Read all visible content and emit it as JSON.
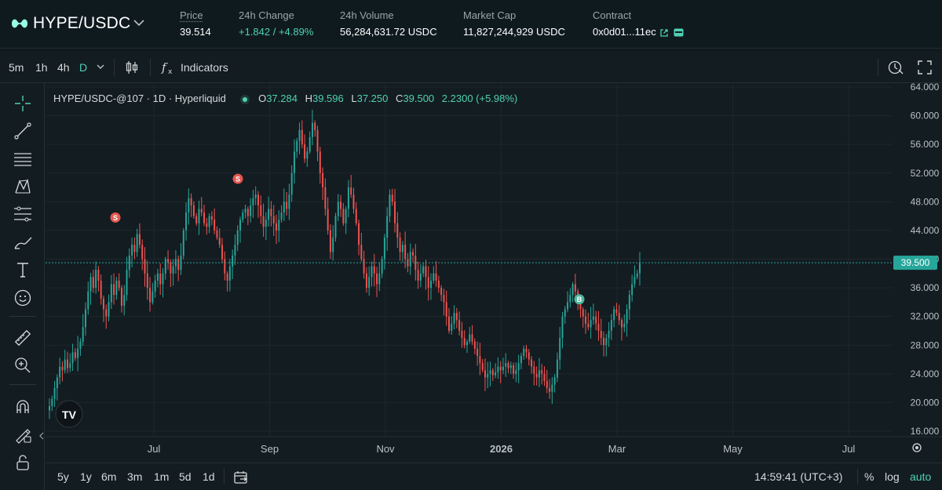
{
  "header": {
    "pair": "HYPE/USDC",
    "stats": [
      {
        "label": "Price",
        "value": "39.514"
      },
      {
        "label": "24h Change",
        "value": "+1.842 / +4.89%"
      },
      {
        "label": "24h Volume",
        "value": "56,284,631.72 USDC"
      },
      {
        "label": "Market Cap",
        "value": "11,827,244,929 USDC"
      },
      {
        "label": "Contract",
        "value": "0x0d01...11ec"
      }
    ]
  },
  "toolbar": {
    "timeframes": [
      "5m",
      "1h",
      "4h",
      "D"
    ],
    "active_timeframe": "D",
    "indicators_label": "Indicators"
  },
  "legend": {
    "symbol": "HYPE/USDC-@107 · 1D · Hyperliquid",
    "open_key": "O",
    "open": "37.284",
    "high_key": "H",
    "high": "39.596",
    "low_key": "L",
    "low": "37.250",
    "close_key": "C",
    "close": "39.500",
    "change": "2.2300 (+5.98%)"
  },
  "chart_data": {
    "type": "candlestick",
    "title": "HYPE/USDC-@107 · 1D · Hyperliquid",
    "price_ticks": [
      "64.000",
      "60.000",
      "56.000",
      "52.000",
      "48.000",
      "44.000",
      "40.000",
      "36.000",
      "32.000",
      "28.000",
      "24.000",
      "20.000",
      "16.000"
    ],
    "price_range": [
      16,
      64
    ],
    "time_ticks": [
      "Jul",
      "Sep",
      "Nov",
      "2026",
      "Mar",
      "May",
      "Jul"
    ],
    "last_price_label": "39.500",
    "last_price": 39.5,
    "markers": [
      {
        "letter": "S",
        "kind": "sell",
        "at": "Jun",
        "price": 45.8
      },
      {
        "letter": "S",
        "kind": "sell",
        "at": "Aug",
        "price": 51.2
      },
      {
        "letter": "B",
        "kind": "buy",
        "at": "Feb",
        "price": 34.4
      }
    ],
    "closes": [
      19.5,
      20.5,
      22.0,
      23.5,
      25.0,
      24.5,
      26.0,
      24.8,
      25.5,
      27.0,
      26.2,
      27.5,
      28.5,
      30.5,
      33.0,
      35.5,
      37.5,
      36.0,
      38.5,
      37.0,
      34.5,
      33.0,
      32.0,
      34.0,
      36.5,
      35.0,
      37.0,
      36.0,
      33.5,
      35.0,
      38.5,
      40.5,
      42.0,
      41.0,
      43.5,
      42.0,
      40.0,
      38.0,
      36.0,
      34.0,
      35.5,
      37.0,
      38.0,
      36.5,
      38.0,
      40.0,
      39.5,
      38.0,
      39.0,
      40.0,
      38.5,
      40.5,
      44.0,
      46.5,
      48.5,
      47.5,
      46.0,
      45.0,
      47.0,
      46.5,
      45.0,
      44.5,
      46.0,
      45.5,
      44.0,
      43.0,
      42.0,
      40.0,
      38.0,
      37.0,
      39.0,
      40.5,
      42.0,
      44.0,
      45.5,
      46.5,
      47.0,
      46.0,
      47.5,
      48.5,
      49.0,
      47.5,
      46.0,
      44.5,
      45.5,
      47.0,
      46.0,
      45.0,
      44.0,
      45.5,
      46.5,
      48.0,
      47.0,
      49.0,
      52.0,
      55.0,
      56.5,
      58.0,
      56.0,
      54.0,
      55.0,
      57.0,
      59.0,
      58.0,
      55.0,
      52.0,
      50.0,
      47.0,
      44.0,
      41.0,
      43.0,
      46.0,
      48.0,
      47.0,
      45.0,
      47.0,
      50.0,
      49.0,
      47.0,
      45.0,
      42.0,
      40.0,
      38.0,
      36.0,
      37.5,
      39.0,
      38.0,
      36.5,
      38.0,
      40.0,
      43.0,
      46.0,
      49.0,
      48.0,
      45.0,
      43.0,
      41.0,
      42.0,
      40.0,
      39.0,
      41.0,
      40.5,
      38.5,
      37.0,
      38.0,
      39.0,
      37.5,
      36.0,
      37.0,
      38.0,
      37.0,
      36.0,
      35.0,
      34.0,
      32.0,
      30.0,
      31.0,
      32.5,
      31.5,
      30.0,
      29.0,
      28.0,
      28.5,
      29.5,
      28.5,
      27.5,
      26.5,
      25.5,
      24.5,
      23.5,
      24.0,
      24.5,
      23.8,
      24.2,
      25.0,
      24.5,
      25.0,
      25.5,
      24.8,
      25.2,
      24.0,
      24.5,
      25.5,
      26.5,
      27.5,
      27.0,
      26.0,
      25.0,
      24.0,
      23.5,
      24.5,
      24.0,
      23.0,
      22.0,
      21.5,
      22.5,
      23.5,
      26.0,
      29.0,
      32.0,
      33.0,
      34.0,
      35.0,
      36.5,
      35.5,
      34.0,
      33.0,
      32.0,
      31.0,
      30.5,
      31.5,
      32.0,
      31.0,
      30.0,
      29.0,
      28.0,
      29.0,
      30.0,
      31.5,
      33.0,
      32.5,
      31.5,
      30.5,
      31.0,
      33.0,
      35.0,
      36.5,
      37.5,
      38.0,
      39.5
    ]
  },
  "bottom": {
    "ranges": [
      "5y",
      "1y",
      "6m",
      "3m",
      "1m",
      "5d",
      "1d"
    ],
    "clock": "14:59:41 (UTC+3)",
    "percent": "%",
    "log": "log",
    "auto": "auto"
  },
  "colors": {
    "up": "#26a69a",
    "down": "#ef5350",
    "accent": "#4fd1b3",
    "background": "#131c21"
  }
}
